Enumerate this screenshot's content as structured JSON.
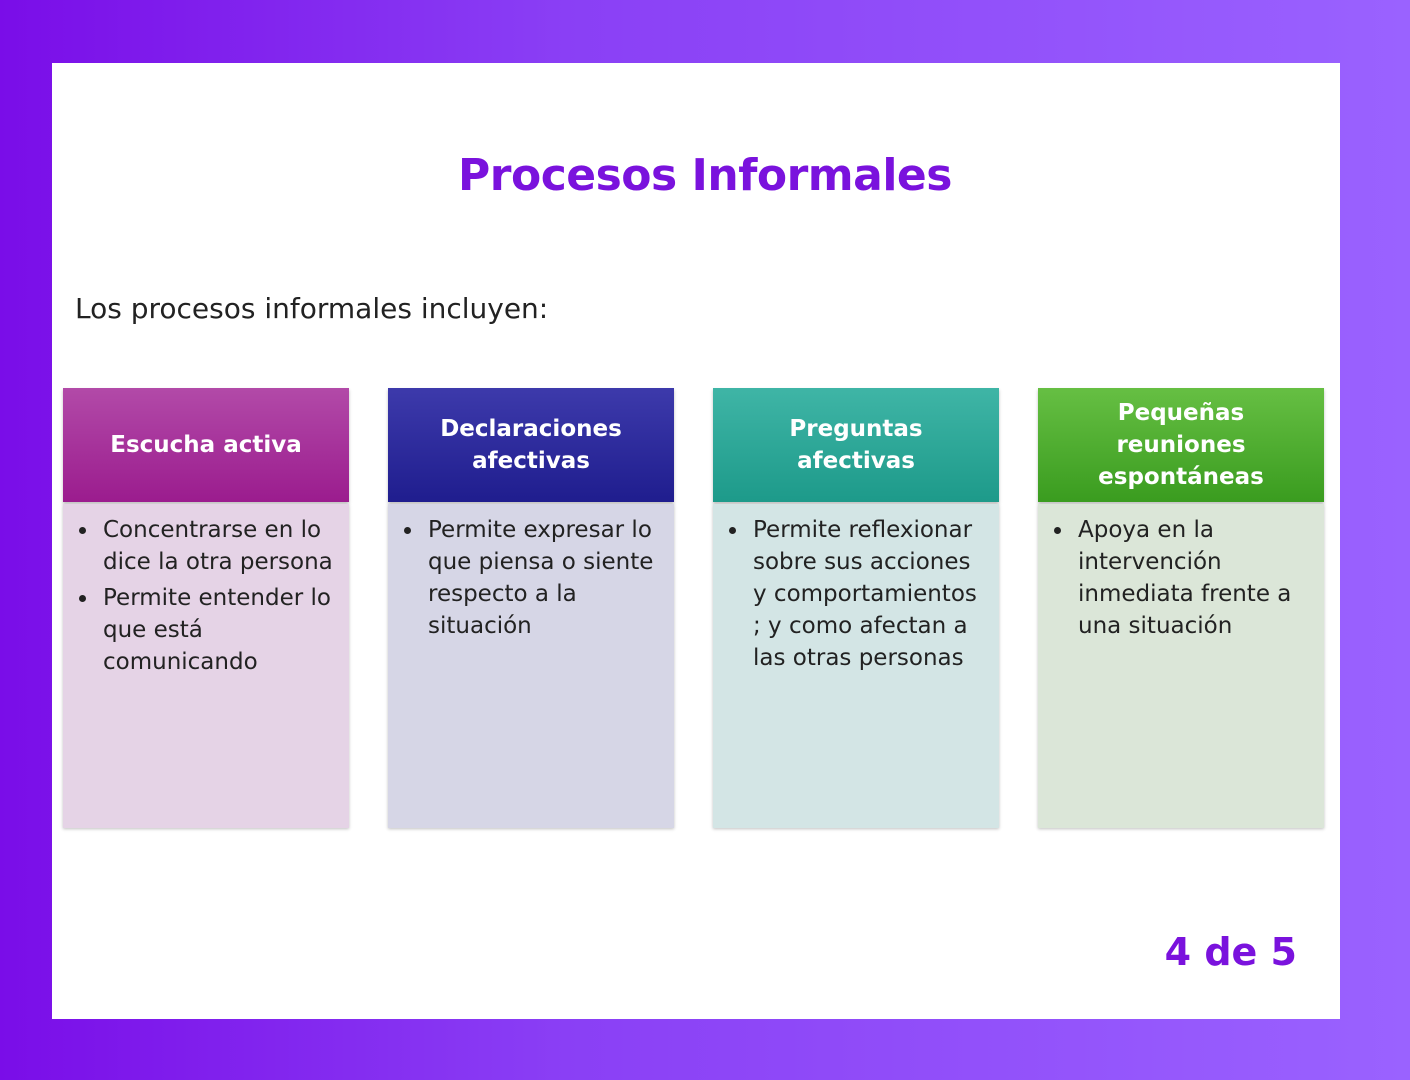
{
  "title": "Procesos Informales",
  "intro": "Los procesos informales incluyen:",
  "cards": [
    {
      "header": "Escucha activa",
      "bullets": [
        "Concentrarse en lo dice la otra persona",
        "Permite entender lo que está comunicando"
      ]
    },
    {
      "header": "Declaraciones afectivas",
      "bullets": [
        "Permite expresar lo que piensa o siente respecto a la situación"
      ]
    },
    {
      "header": "Preguntas afectivas",
      "bullets": [
        "Permite reflexionar sobre sus acciones y comportamientos ; y como afectan a las otras personas"
      ]
    },
    {
      "header": "Pequeñas reuniones espontáneas",
      "bullets": [
        "Apoya en la intervención inmediata frente a una situación"
      ]
    }
  ],
  "pager": "4 de 5"
}
